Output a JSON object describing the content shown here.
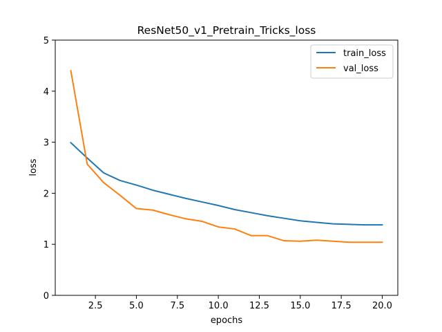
{
  "chart_data": {
    "type": "line",
    "title": "ResNet50_v1_Pretrain_Tricks_loss",
    "xlabel": "epochs",
    "ylabel": "loss",
    "xlim": [
      0.05,
      20.95
    ],
    "ylim": [
      0,
      5
    ],
    "xticks": [
      2.5,
      5.0,
      7.5,
      10.0,
      12.5,
      15.0,
      17.5,
      20.0
    ],
    "xtick_labels": [
      "2.5",
      "5.0",
      "7.5",
      "10.0",
      "12.5",
      "15.0",
      "17.5",
      "20.0"
    ],
    "yticks": [
      0,
      1,
      2,
      3,
      4,
      5
    ],
    "ytick_labels": [
      "0",
      "1",
      "2",
      "3",
      "4",
      "5"
    ],
    "grid": false,
    "legend_position": "top-right",
    "x": [
      1,
      2,
      3,
      4,
      5,
      6,
      7,
      8,
      9,
      10,
      11,
      12,
      13,
      14,
      15,
      16,
      17,
      18,
      19,
      20
    ],
    "series": [
      {
        "name": "train_loss",
        "color": "#1f77b4",
        "values": [
          2.99,
          2.69,
          2.4,
          2.25,
          2.16,
          2.06,
          1.98,
          1.9,
          1.83,
          1.76,
          1.68,
          1.62,
          1.56,
          1.51,
          1.46,
          1.43,
          1.4,
          1.39,
          1.38,
          1.38
        ]
      },
      {
        "name": "val_loss",
        "color": "#ff7f0e",
        "values": [
          4.4,
          2.57,
          2.21,
          1.96,
          1.7,
          1.67,
          1.58,
          1.5,
          1.45,
          1.34,
          1.3,
          1.17,
          1.17,
          1.07,
          1.06,
          1.08,
          1.06,
          1.04,
          1.04,
          1.04
        ]
      }
    ]
  }
}
